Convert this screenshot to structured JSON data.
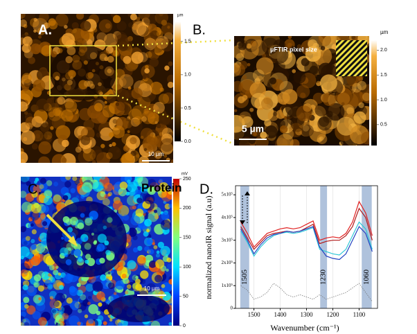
{
  "panels": {
    "a": {
      "label": "A.",
      "colorbar": {
        "unit": "µm",
        "lim": [
          0,
          1.8
        ],
        "ticks": [
          {
            "value": 0,
            "label": "0.0"
          },
          0.5,
          {
            "value": 1,
            "label": "1.0"
          },
          1.5
        ]
      },
      "scale_bar": "10 µm"
    },
    "b": {
      "label": "B.",
      "pixel_note": "µFTIR pixel size",
      "colorbar": {
        "unit": "µm",
        "lim": [
          0.08,
          2.2
        ],
        "ticks": [
          0.5,
          {
            "value": 1,
            "label": "1.0"
          },
          1.5,
          {
            "value": 2,
            "label": "2.0"
          }
        ]
      },
      "scale_bar": "5 µm"
    },
    "c": {
      "label": "C.",
      "map_label": "Protein",
      "colorbar": {
        "unit": "mV",
        "lim": [
          0,
          250
        ],
        "ticks": [
          0,
          50,
          100,
          150,
          200,
          250
        ]
      },
      "scale_bar": "10 µm"
    },
    "d": {
      "label": "D."
    }
  },
  "chart_data": {
    "type": "line",
    "x_label": "Wavenumber (cm⁻¹)",
    "y_label": "normalized nanoIR signal (a.u)",
    "x": [
      1550,
      1525,
      1500,
      1475,
      1450,
      1425,
      1400,
      1375,
      1350,
      1325,
      1300,
      1275,
      1250,
      1225,
      1200,
      1175,
      1150,
      1125,
      1100,
      1075,
      1050
    ],
    "xlim": [
      1570,
      1030
    ],
    "xticks": [
      1500,
      1400,
      1300,
      1200,
      1100
    ],
    "ylim": [
      0,
      540000
    ],
    "yticks": [
      0,
      {
        "value": 100000,
        "label": "1x10⁵"
      },
      {
        "value": 200000,
        "label": "2x10⁵"
      },
      {
        "value": 300000,
        "label": "3x10⁵"
      },
      {
        "value": 400000,
        "label": "4x10⁵"
      },
      {
        "value": 500000,
        "label": "5x10⁵"
      }
    ],
    "grid": true,
    "bands": [
      {
        "label": "1505",
        "from": 1552,
        "to": 1518
      },
      {
        "label": "1230",
        "from": 1248,
        "to": 1222
      },
      {
        "label": "1060",
        "from": 1090,
        "to": 1052
      }
    ],
    "series": [
      {
        "color": "#e02020",
        "values": [
          380000,
          330000,
          270000,
          300000,
          330000,
          340000,
          350000,
          355000,
          350000,
          355000,
          370000,
          385000,
          300000,
          310000,
          315000,
          310000,
          330000,
          380000,
          470000,
          420000,
          320000
        ]
      },
      {
        "color": "#b01818",
        "values": [
          360000,
          310000,
          260000,
          290000,
          320000,
          330000,
          335000,
          340000,
          335000,
          340000,
          355000,
          370000,
          285000,
          295000,
          300000,
          300000,
          320000,
          360000,
          440000,
          400000,
          300000
        ]
      },
      {
        "color": "#30c8d8",
        "values": [
          340000,
          290000,
          230000,
          270000,
          300000,
          320000,
          330000,
          335000,
          330000,
          335000,
          345000,
          355000,
          260000,
          250000,
          240000,
          235000,
          260000,
          320000,
          380000,
          350000,
          260000
        ]
      },
      {
        "color": "#2040c0",
        "values": [
          350000,
          300000,
          240000,
          280000,
          310000,
          325000,
          330000,
          340000,
          335000,
          340000,
          350000,
          360000,
          270000,
          230000,
          220000,
          215000,
          240000,
          300000,
          360000,
          330000,
          250000
        ]
      },
      {
        "color": "#777777",
        "dashed": true,
        "values": [
          100000,
          80000,
          40000,
          50000,
          70000,
          110000,
          90000,
          60000,
          50000,
          60000,
          50000,
          40000,
          60000,
          40000,
          50000,
          60000,
          70000,
          90000,
          110000,
          70000,
          30000
        ]
      }
    ]
  }
}
